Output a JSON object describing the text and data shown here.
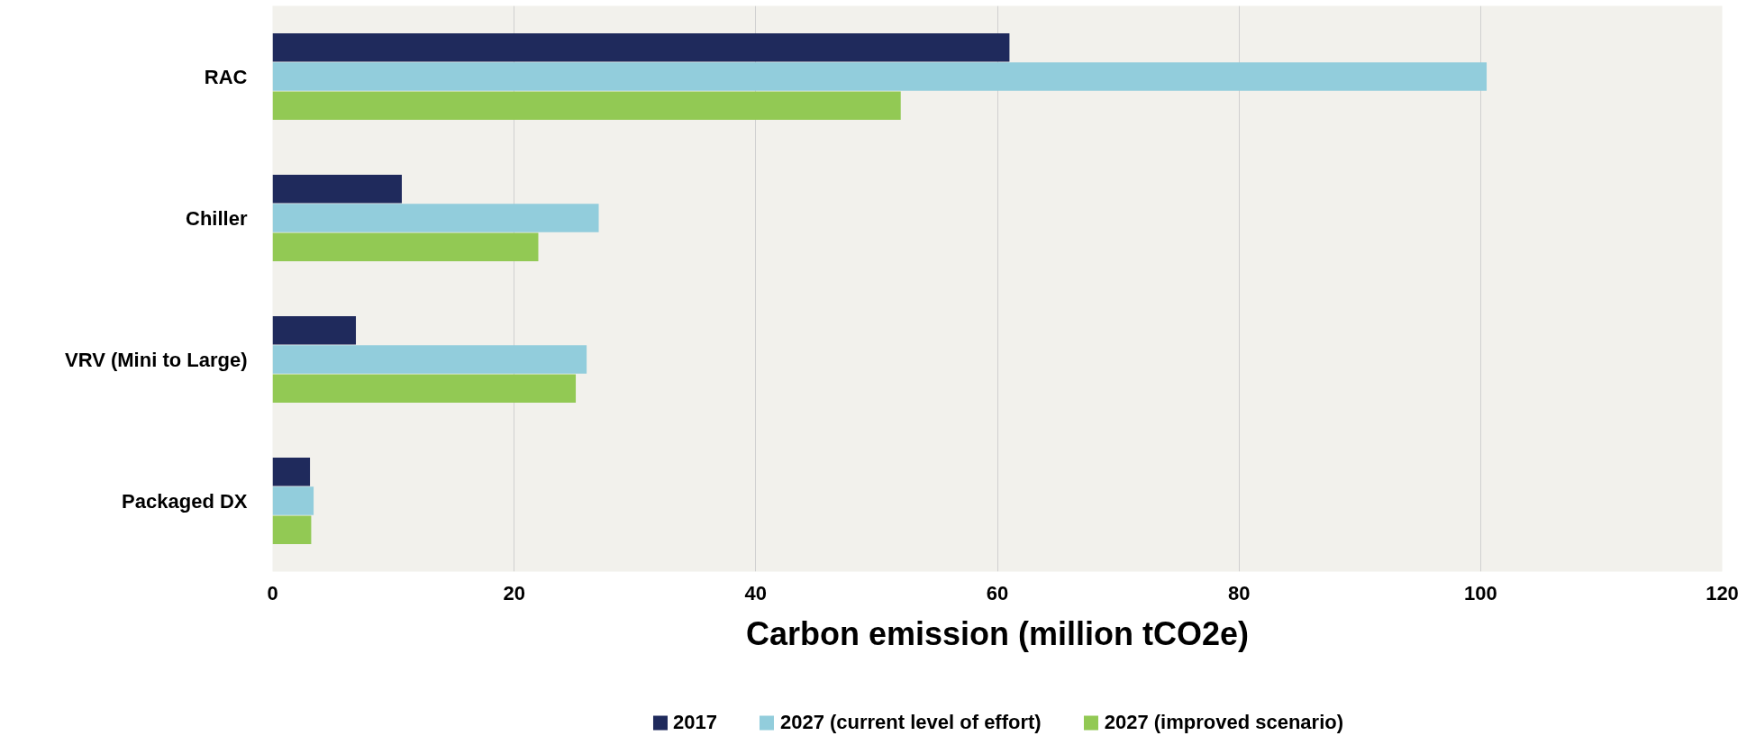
{
  "chart_data": {
    "type": "bar",
    "orientation": "horizontal",
    "xlabel": "Carbon emission (million tCO2e)",
    "categories": [
      "RAC",
      "Chiller",
      "VRV (Mini to Large)",
      "Packaged DX"
    ],
    "series": [
      {
        "name": "2017",
        "color": "#1f2a5c",
        "values": [
          61,
          10.7,
          6.9,
          3.1
        ]
      },
      {
        "name": "2027 (current level of effort)",
        "color": "#92cddc",
        "values": [
          100.5,
          27,
          26,
          3.4
        ]
      },
      {
        "name": "2027 (improved scenario)",
        "color": "#92c954",
        "values": [
          52,
          22,
          25.1,
          3.2
        ]
      }
    ],
    "xlim": [
      0,
      120
    ],
    "xticks": [
      0,
      20,
      40,
      60,
      80,
      100,
      120
    ],
    "grid": "x",
    "legend": "bottom"
  }
}
